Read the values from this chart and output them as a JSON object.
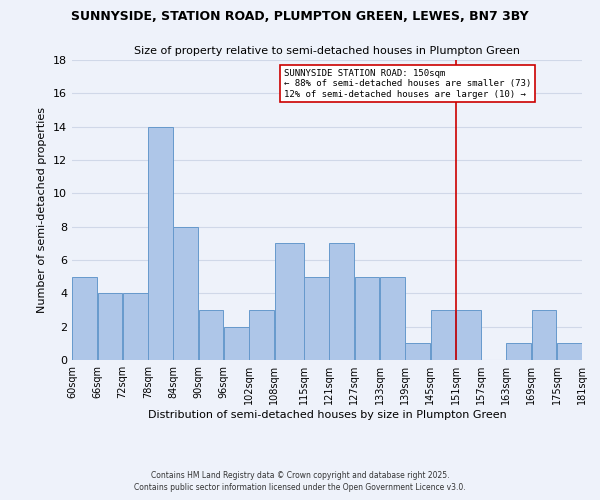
{
  "title": "SUNNYSIDE, STATION ROAD, PLUMPTON GREEN, LEWES, BN7 3BY",
  "subtitle": "Size of property relative to semi-detached houses in Plumpton Green",
  "xlabel": "Distribution of semi-detached houses by size in Plumpton Green",
  "ylabel": "Number of semi-detached properties",
  "bins": [
    60,
    66,
    72,
    78,
    84,
    90,
    96,
    102,
    108,
    115,
    121,
    127,
    133,
    139,
    145,
    151,
    157,
    163,
    169,
    175,
    181
  ],
  "counts": [
    5,
    4,
    4,
    14,
    8,
    3,
    2,
    3,
    7,
    5,
    7,
    5,
    5,
    1,
    3,
    3,
    0,
    1,
    3,
    1
  ],
  "bar_color": "#aec6e8",
  "bar_edge_color": "#6699cc",
  "grid_color": "#d0d8e8",
  "background_color": "#eef2fa",
  "vline_x": 151,
  "vline_color": "#cc0000",
  "legend_title": "SUNNYSIDE STATION ROAD: 150sqm",
  "legend_line1": "← 88% of semi-detached houses are smaller (73)",
  "legend_line2": "12% of semi-detached houses are larger (10) →",
  "footnote1": "Contains HM Land Registry data © Crown copyright and database right 2025.",
  "footnote2": "Contains public sector information licensed under the Open Government Licence v3.0.",
  "ylim": [
    0,
    18
  ],
  "yticks": [
    0,
    2,
    4,
    6,
    8,
    10,
    12,
    14,
    16,
    18
  ],
  "tick_labels": [
    "60sqm",
    "66sqm",
    "72sqm",
    "78sqm",
    "84sqm",
    "90sqm",
    "96sqm",
    "102sqm",
    "108sqm",
    "115sqm",
    "121sqm",
    "127sqm",
    "133sqm",
    "139sqm",
    "145sqm",
    "151sqm",
    "157sqm",
    "163sqm",
    "169sqm",
    "175sqm",
    "181sqm"
  ]
}
